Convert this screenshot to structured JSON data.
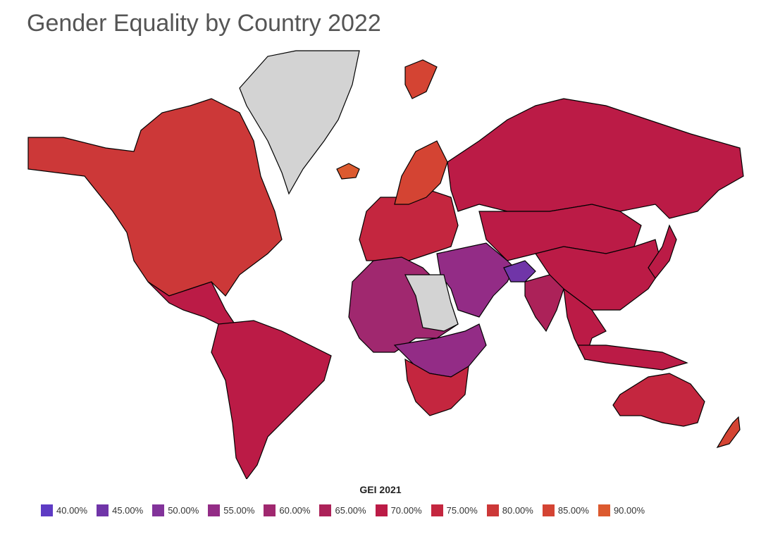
{
  "title": "Gender Equality by Country 2022",
  "legend": {
    "title": "GEI 2021",
    "items": [
      {
        "label": "40.00%",
        "color": "#5e3bc4"
      },
      {
        "label": "45.00%",
        "color": "#7035a8"
      },
      {
        "label": "50.00%",
        "color": "#82339a"
      },
      {
        "label": "55.00%",
        "color": "#932c86"
      },
      {
        "label": "60.00%",
        "color": "#a0286f"
      },
      {
        "label": "65.00%",
        "color": "#ac2259"
      },
      {
        "label": "70.00%",
        "color": "#bb1b46"
      },
      {
        "label": "75.00%",
        "color": "#c4263f"
      },
      {
        "label": "80.00%",
        "color": "#cc3838"
      },
      {
        "label": "85.00%",
        "color": "#d44433"
      },
      {
        "label": "90.00%",
        "color": "#dc5a2f"
      }
    ]
  },
  "no_data_color": "#d3d3d3",
  "regions": [
    {
      "id": "north-america",
      "gei": 78
    },
    {
      "id": "greenland",
      "gei": null
    },
    {
      "id": "central-america",
      "gei": 72
    },
    {
      "id": "south-america",
      "gei": 72
    },
    {
      "id": "europe",
      "gei": 76
    },
    {
      "id": "scandinavia",
      "gei": 84
    },
    {
      "id": "iceland",
      "gei": 88
    },
    {
      "id": "russia",
      "gei": 71
    },
    {
      "id": "central-asia",
      "gei": 71
    },
    {
      "id": "china",
      "gei": 68
    },
    {
      "id": "middle-east",
      "gei": 57
    },
    {
      "id": "afghanistan",
      "gei": 43
    },
    {
      "id": "india",
      "gei": 63
    },
    {
      "id": "north-africa",
      "gei": 62
    },
    {
      "id": "egypt-libya",
      "gei": null
    },
    {
      "id": "central-africa",
      "gei": 55
    },
    {
      "id": "southern-africa",
      "gei": 76
    },
    {
      "id": "southeast-asia",
      "gei": 72
    },
    {
      "id": "japan",
      "gei": 68
    },
    {
      "id": "indonesia",
      "gei": 70
    },
    {
      "id": "australia",
      "gei": 74
    },
    {
      "id": "new-zealand",
      "gei": 86
    },
    {
      "id": "svalbard",
      "gei": 86
    }
  ]
}
